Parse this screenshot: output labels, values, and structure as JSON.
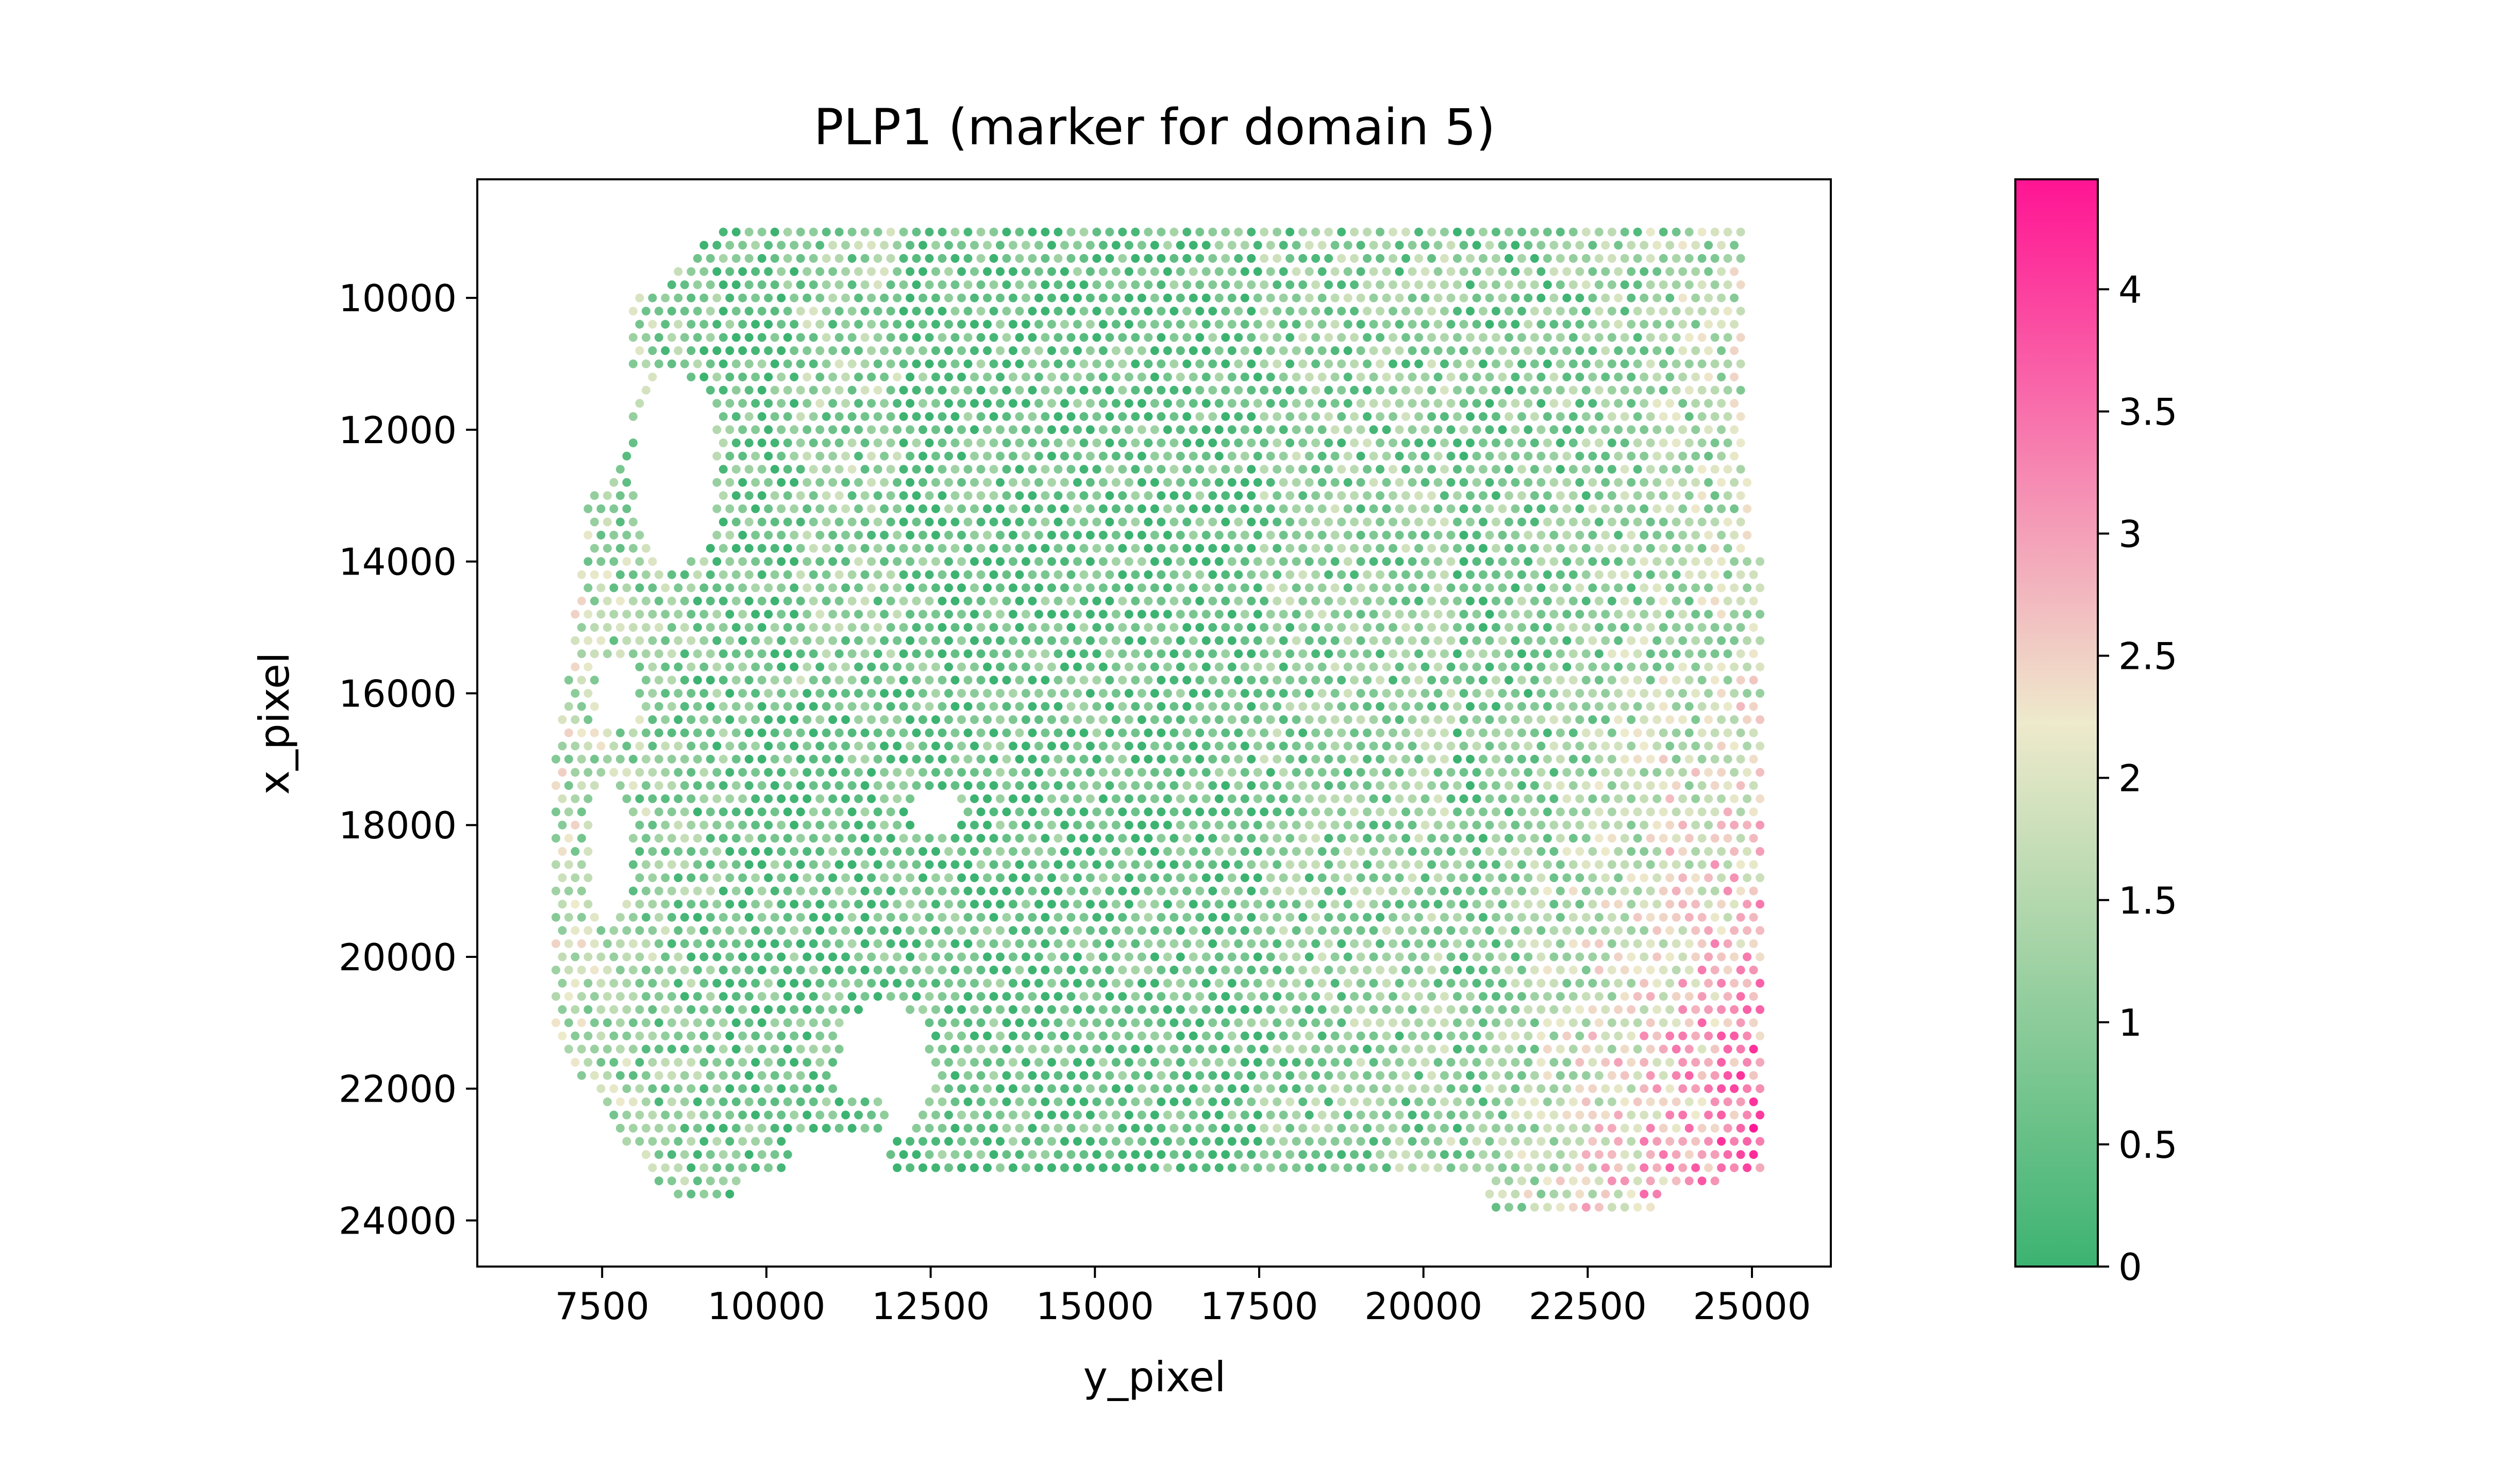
{
  "chart_data": {
    "type": "scatter",
    "title": "PLP1 (marker for domain 5)",
    "xlabel": "y_pixel",
    "ylabel": "x_pixel",
    "xlim": [
      5600,
      26200
    ],
    "ylim": [
      24700,
      8200
    ],
    "y_inverted": true,
    "x_ticks": [
      7500,
      10000,
      12500,
      15000,
      17500,
      20000,
      22500,
      25000
    ],
    "y_ticks": [
      10000,
      12000,
      14000,
      16000,
      18000,
      20000,
      22000,
      24000
    ],
    "x_tick_labels": [
      "7500",
      "10000",
      "12500",
      "15000",
      "17500",
      "20000",
      "22500",
      "25000"
    ],
    "y_tick_labels": [
      "10000",
      "12000",
      "14000",
      "16000",
      "18000",
      "20000",
      "22000",
      "24000"
    ],
    "grid": false,
    "colorbar": {
      "label": "",
      "min": 0,
      "max": 4.45,
      "ticks": [
        0,
        0.5,
        1,
        1.5,
        2,
        2.5,
        3,
        3.5,
        4
      ],
      "tick_labels": [
        "0",
        "0.5",
        "1",
        "1.5",
        "2",
        "2.5",
        "3",
        "3.5",
        "4"
      ],
      "colors": [
        "#3cb371",
        "#eeeacc",
        "#ff1493"
      ]
    },
    "spots": {
      "description_note": "",
      "grid_spacing_x": 196,
      "grid_spacing_y": 200,
      "value_range": [
        0,
        4.45
      ]
    }
  }
}
